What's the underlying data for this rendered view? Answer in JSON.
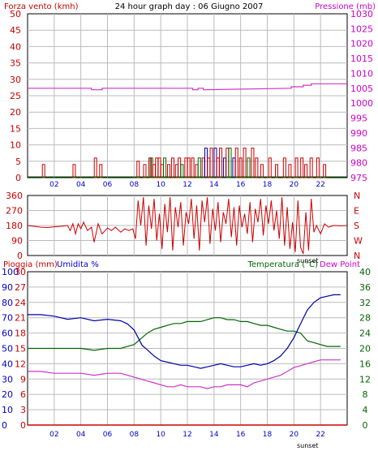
{
  "colors": {
    "wind": "#cc0000",
    "pressure": "#cc33cc",
    "direction": "#cc0000",
    "humidity": "#0000aa",
    "rain": "#cc0000",
    "temperature": "#006600",
    "dewpoint": "#cc33cc",
    "text_red": "#cc0000",
    "text_magenta": "#cc00cc",
    "text_green": "#006600",
    "text_blue": "#0000cc",
    "grid": "#bbbbbb",
    "frame": "#000000"
  },
  "header": {
    "wind_title": "Forza vento (kmh)",
    "center_title": "24 hour graph day : 06 Giugno 2007",
    "pressure_title": "Pressione (mb)"
  },
  "bottom_headers": {
    "rain": "Pioggia (mm)",
    "humidity": "Umidita %",
    "temperature": "Temperatura (°C)",
    "dewpoint": "Dew Point"
  },
  "sunset_label": "sunset",
  "chart_data": [
    {
      "type": "line",
      "name": "wind-pressure",
      "x_ticks": [
        "02",
        "04",
        "06",
        "08",
        "10",
        "12",
        "14",
        "16",
        "18",
        "20",
        "22"
      ],
      "xlim": [
        0,
        24
      ],
      "left_axis": {
        "label": "Forza vento (kmh)",
        "ylim": [
          0,
          50
        ],
        "ticks": [
          "0",
          "5",
          "10",
          "15",
          "20",
          "25",
          "30",
          "35",
          "40",
          "45",
          "50"
        ]
      },
      "right_axis": {
        "label": "Pressione (mb)",
        "ylim": [
          975,
          1030
        ],
        "ticks": [
          "975",
          "980",
          "985",
          "990",
          "995",
          "1000",
          "1005",
          "1010",
          "1015",
          "1020",
          "1025",
          "1030"
        ]
      },
      "grid": true,
      "series": [
        {
          "name": "Pressione (mb)",
          "axis": "right",
          "x": [
            0,
            4.8,
            4.8,
            5.6,
            5.6,
            12.4,
            12.4,
            12.8,
            12.8,
            13.2,
            13.2,
            19.8,
            19.8,
            20.7,
            20.7,
            21.3,
            21.3,
            24
          ],
          "y": [
            1005,
            1005,
            1004.5,
            1004.5,
            1005,
            1005,
            1004.5,
            1004.5,
            1005,
            1005,
            1004.5,
            1005,
            1005.5,
            1005.5,
            1006,
            1006,
            1006.5,
            1006.5
          ]
        },
        {
          "name": "Forza vento (kmh)",
          "axis": "left",
          "style": "bars",
          "x": [
            1.2,
            3.5,
            5.1,
            5.5,
            8.3,
            8.8,
            9.2,
            9.3,
            9.5,
            9.7,
            9.9,
            10.1,
            10.3,
            10.6,
            10.9,
            11.2,
            11.4,
            11.6,
            11.9,
            12.1,
            12.4,
            12.7,
            12.9,
            13.2,
            13.4,
            13.6,
            13.8,
            14.1,
            14.3,
            14.5,
            14.8,
            15.0,
            15.2,
            15.5,
            15.7,
            16.0,
            16.3,
            16.6,
            16.9,
            17.2,
            17.6,
            18.2,
            18.7,
            19.3,
            19.7,
            20.2,
            20.6,
            20.9,
            21.3,
            21.8,
            22.3
          ],
          "y": [
            4,
            4,
            6,
            4,
            5,
            4,
            6,
            6,
            4,
            6,
            6,
            4,
            6,
            4,
            6,
            4,
            6,
            4,
            6,
            6,
            6,
            4,
            6,
            6,
            9,
            6,
            9,
            9,
            6,
            9,
            6,
            9,
            9,
            6,
            9,
            6,
            9,
            6,
            9,
            6,
            4,
            6,
            4,
            6,
            4,
            6,
            6,
            4,
            6,
            6,
            4
          ]
        }
      ]
    },
    {
      "type": "line",
      "name": "wind-direction",
      "xlim": [
        0,
        24
      ],
      "left_axis": {
        "ylim": [
          0,
          360
        ],
        "ticks": [
          "0",
          "90",
          "180",
          "270",
          "360"
        ]
      },
      "right_axis": {
        "ticks": [
          "N",
          "W",
          "S",
          "E",
          "N"
        ]
      },
      "grid": true,
      "series": [
        {
          "name": "direction",
          "x": [
            0,
            0.5,
            1.0,
            1.5,
            2.0,
            2.5,
            3.0,
            3.2,
            3.4,
            3.6,
            3.8,
            4.0,
            4.2,
            4.5,
            4.8,
            5.0,
            5.3,
            5.6,
            6.0,
            6.3,
            6.6,
            7.0,
            7.3,
            7.6,
            7.9,
            8.1,
            8.3,
            8.5,
            8.7,
            8.9,
            9.1,
            9.3,
            9.5,
            9.7,
            9.9,
            10.1,
            10.3,
            10.5,
            10.7,
            10.9,
            11.1,
            11.3,
            11.5,
            11.7,
            11.9,
            12.1,
            12.3,
            12.5,
            12.7,
            12.9,
            13.1,
            13.3,
            13.5,
            13.7,
            13.9,
            14.1,
            14.3,
            14.5,
            14.7,
            14.9,
            15.1,
            15.3,
            15.5,
            15.7,
            15.9,
            16.1,
            16.3,
            16.5,
            16.7,
            16.9,
            17.1,
            17.3,
            17.5,
            17.7,
            17.9,
            18.1,
            18.3,
            18.5,
            18.7,
            18.9,
            19.1,
            19.3,
            19.5,
            19.7,
            19.9,
            20.1,
            20.3,
            20.5,
            20.7,
            20.9,
            21.1,
            21.3,
            21.5,
            21.7,
            22.0,
            22.3,
            22.6,
            23.0,
            23.5,
            24
          ],
          "y": [
            180,
            175,
            170,
            168,
            172,
            175,
            180,
            150,
            190,
            130,
            190,
            160,
            200,
            150,
            170,
            80,
            190,
            130,
            165,
            150,
            170,
            140,
            160,
            150,
            160,
            100,
            330,
            180,
            350,
            60,
            300,
            160,
            340,
            90,
            250,
            40,
            310,
            140,
            350,
            30,
            290,
            170,
            320,
            60,
            260,
            190,
            340,
            100,
            300,
            30,
            330,
            200,
            350,
            70,
            280,
            150,
            320,
            80,
            260,
            190,
            340,
            110,
            290,
            60,
            300,
            170,
            250,
            130,
            320,
            80,
            280,
            200,
            340,
            120,
            300,
            190,
            330,
            150,
            270,
            100,
            350,
            60,
            290,
            40,
            200,
            20,
            330,
            50,
            10,
            260,
            30,
            340,
            140,
            180,
            130,
            190,
            170,
            180,
            178,
            180
          ]
        }
      ]
    },
    {
      "type": "line",
      "name": "rain-humidity-temperature",
      "xlim": [
        0,
        24
      ],
      "left_axis": {
        "label": "Pioggia (mm)",
        "ylim": [
          0,
          30
        ],
        "ticks": [
          "0",
          "3",
          "6",
          "9",
          "12",
          "15",
          "18",
          "21",
          "24",
          "27",
          "30"
        ]
      },
      "left_axis_2": {
        "label": "Umidita %",
        "ylim": [
          0,
          100
        ],
        "ticks": [
          "0",
          "10",
          "20",
          "30",
          "40",
          "50",
          "60",
          "70",
          "80",
          "90",
          "100"
        ]
      },
      "right_axis": {
        "label": "Temperatura (°C)",
        "ylim": [
          0,
          40
        ],
        "ticks": [
          "0",
          "4",
          "8",
          "12",
          "16",
          "20",
          "24",
          "28",
          "32",
          "36",
          "40"
        ]
      },
      "grid": true,
      "series": [
        {
          "name": "Umidita %",
          "axis": "left2",
          "x": [
            0,
            1,
            2,
            3,
            4,
            5,
            6,
            7,
            7.5,
            8,
            8.3,
            8.6,
            9,
            9.5,
            10,
            10.5,
            11,
            11.5,
            12,
            12.5,
            13,
            13.5,
            14,
            14.5,
            15,
            15.5,
            16,
            16.5,
            17,
            17.5,
            18,
            18.5,
            19,
            19.5,
            20,
            20.5,
            21,
            21.5,
            22,
            22.5,
            23,
            23.5
          ],
          "y": [
            72,
            72,
            71,
            69,
            70,
            68,
            69,
            68,
            66,
            62,
            57,
            52,
            49,
            45,
            42,
            41,
            40,
            39,
            39,
            38,
            37,
            38,
            39,
            40,
            39,
            38,
            38,
            39,
            40,
            39,
            40,
            42,
            45,
            50,
            57,
            66,
            75,
            80,
            83,
            84,
            85,
            85
          ]
        },
        {
          "name": "Temperatura (°C)",
          "axis": "right",
          "x": [
            0,
            1,
            2,
            3,
            4,
            5,
            6,
            7,
            7.5,
            8,
            8.5,
            9,
            9.5,
            10,
            10.5,
            11,
            11.5,
            12,
            12.5,
            13,
            13.5,
            14,
            14.5,
            15,
            15.5,
            16,
            16.5,
            17,
            17.5,
            18,
            18.5,
            19,
            19.5,
            20,
            20.5,
            21,
            21.5,
            22,
            22.5,
            23,
            23.5
          ],
          "y": [
            20,
            20,
            20,
            20,
            20,
            19.5,
            20,
            20,
            20.5,
            21,
            22.5,
            24,
            25,
            25.5,
            26,
            26.5,
            26.5,
            27,
            27,
            27,
            27.5,
            28,
            28,
            27.5,
            27.5,
            27,
            27,
            26.5,
            26,
            26,
            25.5,
            25,
            24.5,
            24.5,
            24,
            22,
            21.5,
            21,
            20.5,
            20.5,
            20.5
          ]
        },
        {
          "name": "Dew Point",
          "axis": "right",
          "x": [
            0,
            1,
            2,
            3,
            4,
            5,
            6,
            7,
            7.5,
            8,
            8.5,
            9,
            9.5,
            10,
            10.5,
            11,
            11.5,
            12,
            12.5,
            13,
            13.5,
            14,
            14.5,
            15,
            15.5,
            16,
            16.5,
            17,
            17.5,
            18,
            18.5,
            19,
            19.5,
            20,
            20.5,
            21,
            21.5,
            22,
            22.5,
            23,
            23.5
          ],
          "y": [
            14,
            14,
            13.5,
            13.5,
            13.5,
            13,
            13.5,
            13.5,
            13,
            12.5,
            12,
            11.5,
            11,
            10.5,
            10,
            10,
            10.5,
            10,
            10,
            10,
            9.5,
            10,
            10,
            10.5,
            10.5,
            10.5,
            10,
            11,
            11.5,
            12,
            12.5,
            13,
            14,
            15,
            15.5,
            16,
            16.5,
            17,
            17,
            17,
            17
          ]
        },
        {
          "name": "Pioggia (mm)",
          "axis": "left",
          "x": [
            0,
            24
          ],
          "y": [
            0,
            0
          ]
        }
      ]
    }
  ]
}
